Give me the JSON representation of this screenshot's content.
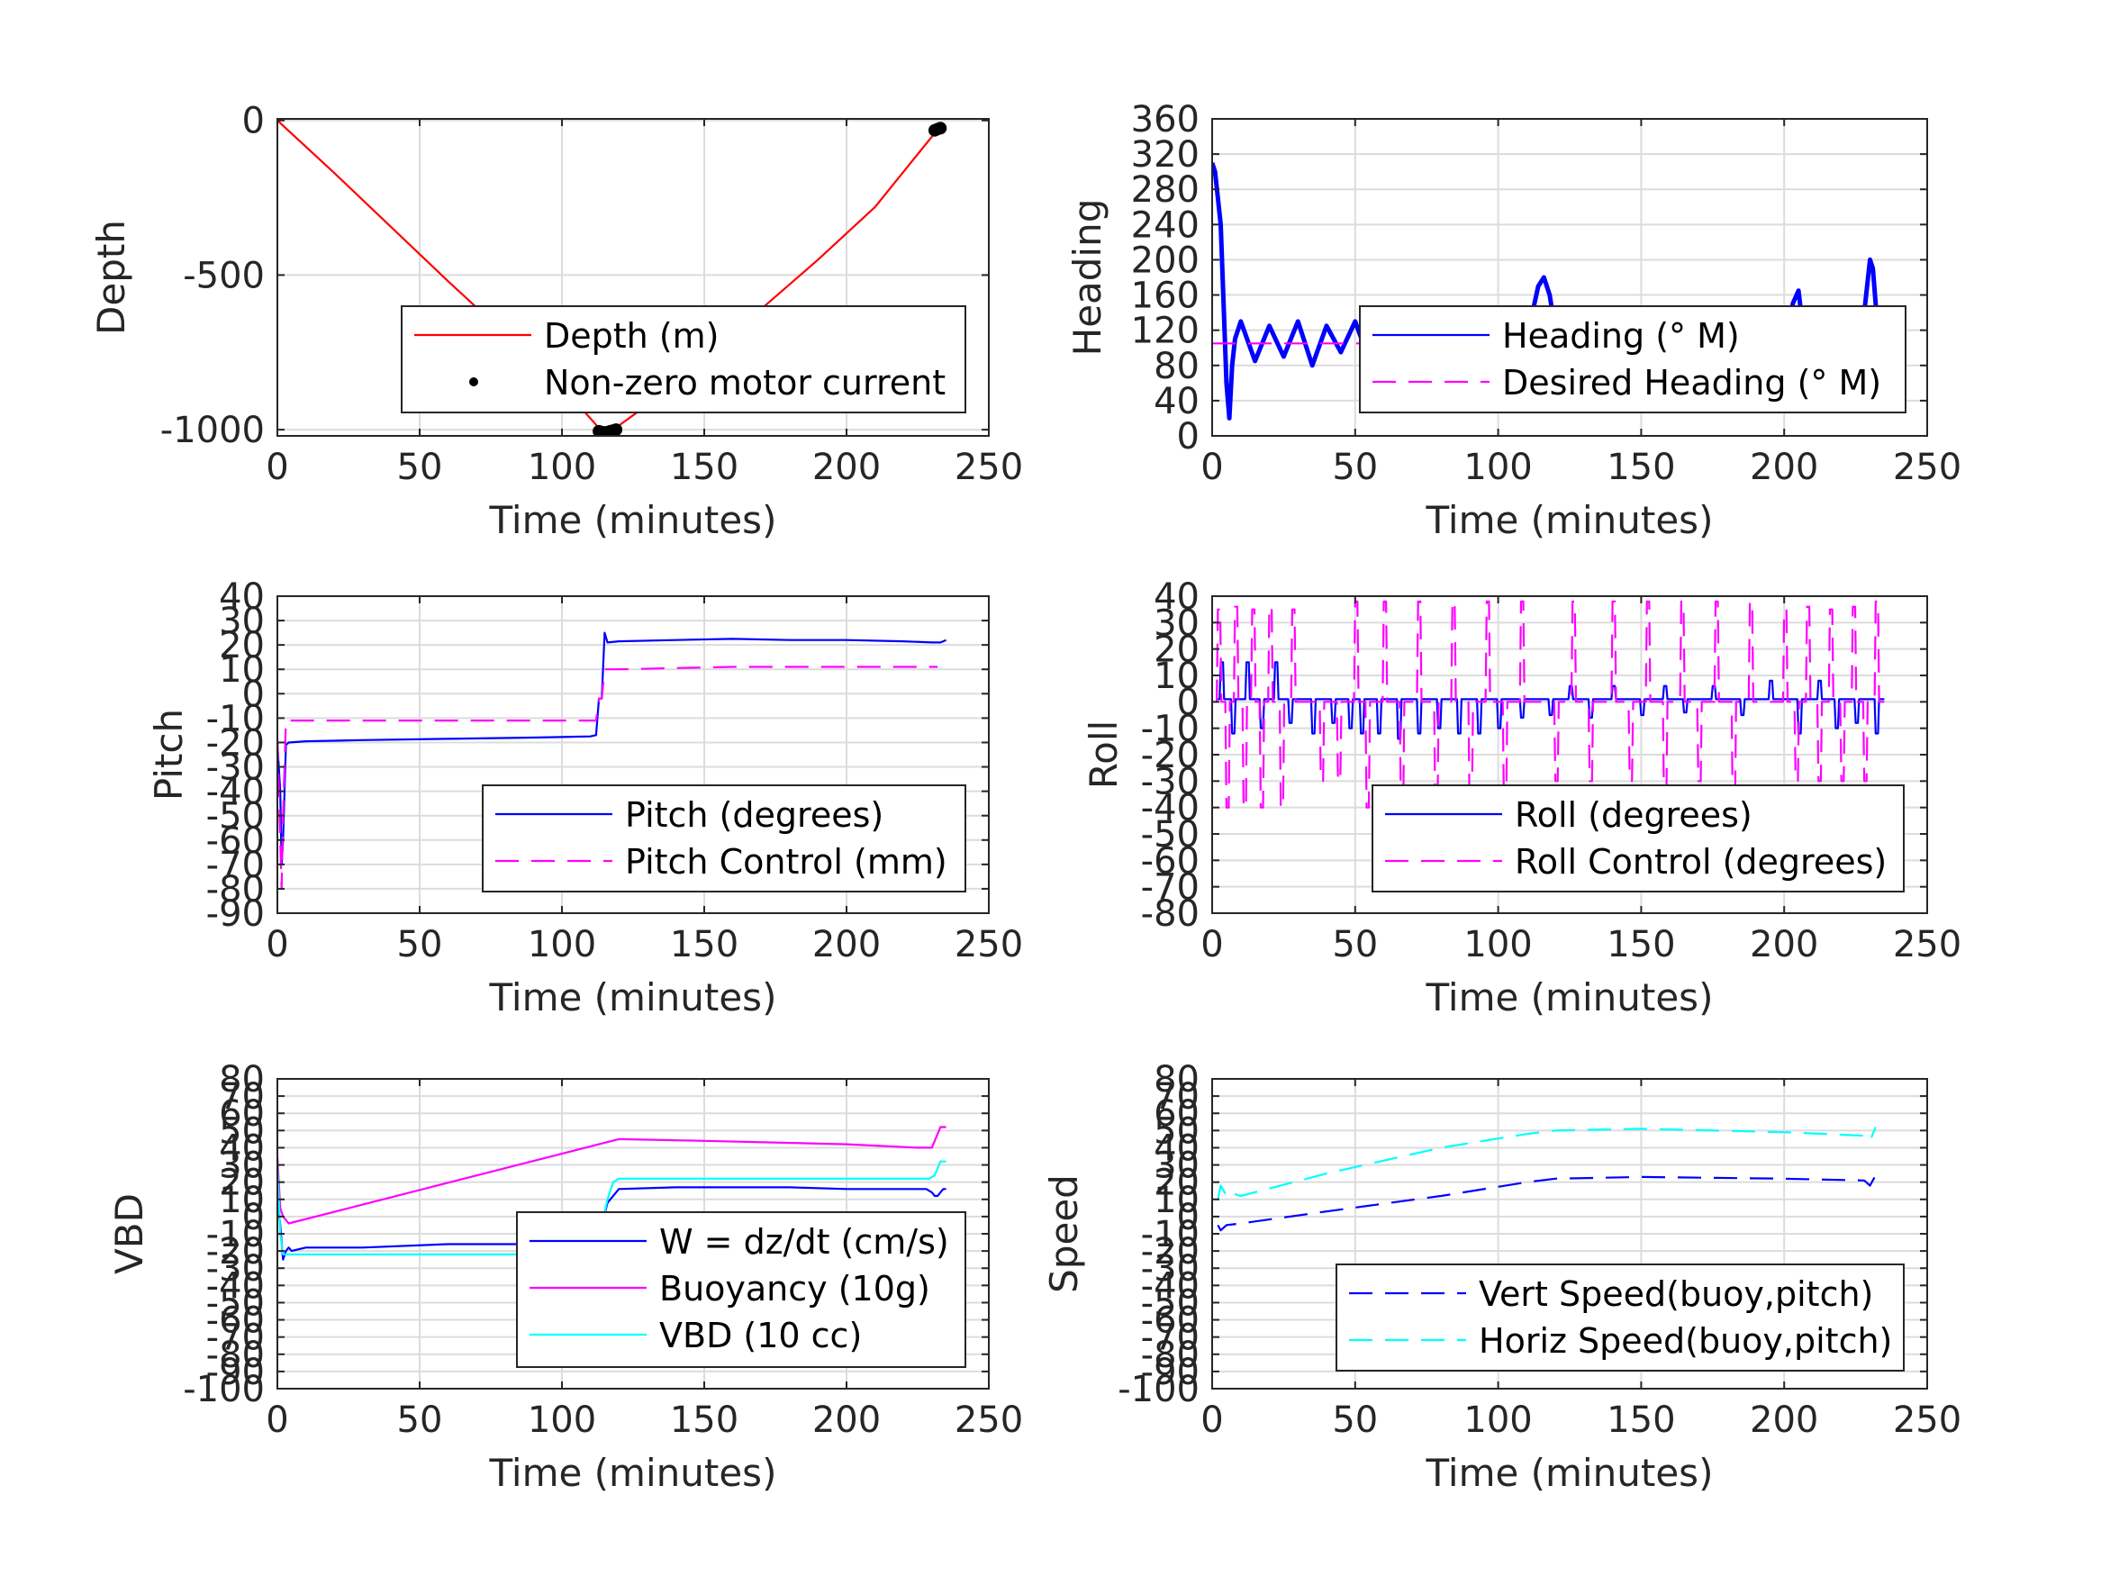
{
  "chart_data": [
    {
      "id": "depth",
      "type": "line",
      "ylabel": "Depth",
      "xlabel": "Time (minutes)",
      "xlim": [
        0,
        250
      ],
      "ylim": [
        -1020,
        5
      ],
      "xticks": [
        0,
        50,
        100,
        150,
        200,
        250
      ],
      "yticks": [
        0,
        -500,
        -1000
      ],
      "ytick_labels": [
        "0",
        "-500",
        "-1000"
      ],
      "grid": true,
      "legend_position": "lower-right",
      "series": [
        {
          "name": "Depth (m)",
          "color": "#ff0000",
          "style": "solid",
          "x": [
            0,
            20,
            40,
            60,
            80,
            100,
            114,
            118,
            130,
            150,
            170,
            190,
            210,
            232,
            234
          ],
          "y": [
            0,
            -170,
            -345,
            -520,
            -690,
            -860,
            -1005,
            -1000,
            -920,
            -760,
            -610,
            -450,
            -280,
            -30,
            -20
          ]
        },
        {
          "name": "Non-zero motor current",
          "color": "#000000",
          "style": "dots",
          "x": [
            113,
            114,
            115,
            116,
            117,
            118,
            119,
            231,
            232,
            233
          ],
          "y": [
            -1005,
            -1008,
            -1009,
            -1008,
            -1005,
            -1003,
            -1000,
            -32,
            -28,
            -25
          ]
        }
      ]
    },
    {
      "id": "heading",
      "type": "line",
      "ylabel": "Heading",
      "xlabel": "Time (minutes)",
      "xlim": [
        0,
        250
      ],
      "ylim": [
        0,
        360
      ],
      "xticks": [
        0,
        50,
        100,
        150,
        200,
        250
      ],
      "yticks": [
        0,
        40,
        80,
        120,
        160,
        200,
        240,
        280,
        320,
        360
      ],
      "ytick_labels": [
        "0",
        "40",
        "80",
        "120",
        "160",
        "200",
        "240",
        "280",
        "320",
        "360"
      ],
      "grid": true,
      "legend_position": "lower-right",
      "series": [
        {
          "name": "Heading (° M)",
          "color": "#0000ff",
          "style": "solid",
          "x": [
            0,
            1,
            2,
            3,
            4,
            5,
            6,
            7,
            8,
            10,
            15,
            20,
            25,
            30,
            35,
            40,
            45,
            50,
            55,
            60,
            65,
            70,
            75,
            80,
            85,
            90,
            95,
            100,
            105,
            110,
            112,
            114,
            116,
            118,
            120,
            125,
            130,
            135,
            140,
            145,
            150,
            155,
            160,
            165,
            170,
            175,
            180,
            185,
            190,
            195,
            200,
            203,
            205,
            207,
            210,
            215,
            220,
            225,
            228,
            230,
            231,
            232,
            233,
            234,
            235
          ],
          "y": [
            310,
            300,
            270,
            240,
            150,
            60,
            20,
            80,
            110,
            130,
            85,
            125,
            90,
            130,
            80,
            125,
            95,
            130,
            85,
            120,
            90,
            125,
            80,
            130,
            90,
            120,
            85,
            130,
            95,
            120,
            140,
            170,
            180,
            160,
            120,
            80,
            125,
            90,
            130,
            80,
            125,
            90,
            120,
            75,
            130,
            85,
            140,
            100,
            80,
            120,
            60,
            150,
            165,
            110,
            70,
            125,
            95,
            120,
            140,
            200,
            190,
            150,
            110,
            80,
            40
          ]
        },
        {
          "name": "Desired Heading (° M)",
          "color": "#ff00ff",
          "style": "dashed",
          "x": [
            0,
            235
          ],
          "y": [
            105,
            105
          ]
        }
      ]
    },
    {
      "id": "pitch",
      "type": "line",
      "ylabel": "Pitch",
      "xlabel": "Time (minutes)",
      "xlim": [
        0,
        250
      ],
      "ylim": [
        -90,
        40
      ],
      "xticks": [
        0,
        50,
        100,
        150,
        200,
        250
      ],
      "yticks": [
        40,
        30,
        20,
        10,
        0,
        -10,
        -20,
        -30,
        -40,
        -50,
        -60,
        -70,
        -80,
        -90
      ],
      "ytick_labels": [
        "40",
        "30",
        "20",
        "10",
        "0",
        "-10",
        "-20",
        "-30",
        "-40",
        "-50",
        "-60",
        "-70",
        "-80",
        "-90"
      ],
      "grid": true,
      "legend_position": "lower-right",
      "series": [
        {
          "name": "Pitch (degrees)",
          "color": "#0000ff",
          "style": "solid",
          "x": [
            0,
            1,
            1.5,
            2,
            3,
            4,
            10,
            30,
            60,
            90,
            110,
            112,
            113,
            114,
            115,
            116,
            120,
            140,
            160,
            180,
            200,
            220,
            230,
            233,
            234,
            235
          ],
          "y": [
            -20,
            -40,
            -70,
            -60,
            -21,
            -20,
            -19.5,
            -19,
            -18.5,
            -18,
            -17.5,
            -17,
            -2,
            -2,
            25,
            21,
            21.5,
            22,
            22.5,
            22,
            22,
            21.5,
            21,
            21,
            21.5,
            22
          ]
        },
        {
          "name": "Pitch Control (mm)",
          "color": "#ff00ff",
          "style": "dashed",
          "x": [
            0,
            1,
            1.5,
            2,
            3,
            5,
            50,
            100,
            112,
            113,
            114,
            115,
            120,
            160,
            200,
            232
          ],
          "y": [
            -18,
            -60,
            -80,
            -50,
            -11,
            -11,
            -11,
            -11,
            -11,
            -2,
            -2,
            10,
            10,
            11,
            11,
            11
          ]
        }
      ]
    },
    {
      "id": "roll",
      "type": "line",
      "ylabel": "Roll",
      "xlabel": "Time (minutes)",
      "xlim": [
        0,
        250
      ],
      "ylim": [
        -80,
        40
      ],
      "xticks": [
        0,
        50,
        100,
        150,
        200,
        250
      ],
      "yticks": [
        40,
        30,
        20,
        10,
        0,
        -10,
        -20,
        -30,
        -40,
        -50,
        -60,
        -70,
        -80
      ],
      "ytick_labels": [
        "40",
        "30",
        "20",
        "10",
        "0",
        "-10",
        "-20",
        "-30",
        "-40",
        "-50",
        "-60",
        "-70",
        "-80"
      ],
      "grid": true,
      "legend_position": "lower-right",
      "series": [
        {
          "name": "Roll (degrees)",
          "color": "#0000ff",
          "style": "solid",
          "spikes_x": [
            3,
            7,
            12,
            17,
            22,
            27,
            35,
            42,
            48,
            52,
            58,
            65,
            72,
            79,
            86,
            93,
            100,
            108,
            118,
            125,
            132,
            140,
            150,
            158,
            165,
            175,
            185,
            195,
            205,
            212,
            218,
            225,
            232
          ],
          "spikes_y": [
            15,
            -12,
            15,
            -10,
            15,
            -8,
            -12,
            -8,
            -10,
            -12,
            -12,
            -14,
            -12,
            -10,
            -12,
            -12,
            -10,
            -6,
            -5,
            6,
            -6,
            6,
            -5,
            6,
            -4,
            6,
            -5,
            8,
            -12,
            8,
            -10,
            -8,
            -12
          ],
          "base": 1
        },
        {
          "name": "Roll Control (degrees)",
          "color": "#ff00ff",
          "style": "dashed",
          "spikes_x": [
            2,
            5,
            8,
            11,
            14,
            17,
            20,
            24,
            28,
            38,
            44,
            50,
            54,
            60,
            66,
            72,
            78,
            84,
            90,
            96,
            102,
            108,
            120,
            126,
            132,
            140,
            146,
            152,
            158,
            164,
            170,
            176,
            182,
            188,
            200,
            204,
            208,
            212,
            216,
            220,
            224,
            228,
            232
          ],
          "spikes_y": [
            35,
            -40,
            36,
            -40,
            35,
            -40,
            36,
            -40,
            35,
            -30,
            -30,
            38,
            -40,
            38,
            -40,
            38,
            -40,
            38,
            -40,
            38,
            -40,
            38,
            -30,
            38,
            -30,
            38,
            -30,
            38,
            -40,
            38,
            -30,
            38,
            -40,
            38,
            35,
            -30,
            36,
            -30,
            35,
            -30,
            36,
            -30,
            38
          ],
          "base": 0
        }
      ]
    },
    {
      "id": "vbd",
      "type": "line",
      "ylabel": "VBD",
      "xlabel": "Time (minutes)",
      "xlim": [
        0,
        250
      ],
      "ylim": [
        -100,
        80
      ],
      "xticks": [
        0,
        50,
        100,
        150,
        200,
        250
      ],
      "yticks": [
        80,
        70,
        60,
        50,
        40,
        30,
        20,
        10,
        0,
        -10,
        -20,
        -30,
        -40,
        -50,
        -60,
        -70,
        -80,
        -90,
        -100
      ],
      "ytick_labels": [
        "80",
        "70",
        "60",
        "50",
        "40",
        "30",
        "20",
        "10",
        "0",
        "-10",
        "-20",
        "-30",
        "-40",
        "-50",
        "-60",
        "-70",
        "-80",
        "-90",
        "-100"
      ],
      "grid": true,
      "legend_position": "lower-right",
      "series": [
        {
          "name": "W = dz/dt (cm/s)",
          "color": "#0000ff",
          "style": "solid",
          "x": [
            0,
            1,
            2,
            3,
            4,
            5,
            10,
            30,
            60,
            90,
            108,
            112,
            114,
            116,
            120,
            140,
            160,
            180,
            200,
            220,
            228,
            230,
            231,
            232,
            233,
            234,
            235
          ],
          "y": [
            10,
            -5,
            -25,
            -20,
            -18,
            -20,
            -18,
            -18,
            -16,
            -16,
            -16,
            -14,
            -5,
            8,
            16,
            17,
            17,
            17,
            16,
            16,
            16,
            14,
            12,
            12,
            14,
            16,
            16
          ]
        },
        {
          "name": "Buoyancy (10g)",
          "color": "#ff00ff",
          "style": "solid",
          "x": [
            0,
            1,
            2,
            3,
            4,
            120,
            150,
            200,
            225,
            230,
            232,
            233,
            235
          ],
          "y": [
            35,
            5,
            0,
            -2,
            -4,
            45,
            44,
            42,
            40,
            40,
            48,
            52,
            52
          ]
        },
        {
          "name": "VBD (10 cc)",
          "color": "#00ffff",
          "style": "solid",
          "x": [
            0,
            1,
            2,
            3,
            4,
            110,
            112,
            114,
            116,
            118,
            120,
            150,
            200,
            229,
            231,
            233,
            235
          ],
          "y": [
            30,
            -10,
            -22,
            -22,
            -22,
            -22,
            -20,
            -5,
            10,
            20,
            22,
            22,
            22,
            22,
            24,
            32,
            32
          ]
        }
      ]
    },
    {
      "id": "speed",
      "type": "line",
      "ylabel": "Speed",
      "xlabel": "Time (minutes)",
      "xlim": [
        0,
        250
      ],
      "ylim": [
        -100,
        80
      ],
      "xticks": [
        0,
        50,
        100,
        150,
        200,
        250
      ],
      "yticks": [
        80,
        70,
        60,
        50,
        40,
        30,
        20,
        10,
        0,
        -10,
        -20,
        -30,
        -40,
        -50,
        -60,
        -70,
        -80,
        -90,
        -100
      ],
      "ytick_labels": [
        "80",
        "70",
        "60",
        "50",
        "40",
        "30",
        "20",
        "10",
        "0",
        "-10",
        "-20",
        "-30",
        "-40",
        "-50",
        "-60",
        "-70",
        "-80",
        "-90",
        "-100"
      ],
      "grid": true,
      "legend_position": "lower-right",
      "series": [
        {
          "name": "Vert Speed(buoy,pitch)",
          "color": "#0000ff",
          "style": "dashed",
          "x": [
            2,
            3,
            5,
            10,
            40,
            80,
            110,
            120,
            150,
            200,
            228,
            230,
            232
          ],
          "y": [
            -5,
            -8,
            -5,
            -4,
            3,
            12,
            20,
            22,
            23,
            22,
            21,
            18,
            24
          ]
        },
        {
          "name": "Horiz Speed(buoy,pitch)",
          "color": "#00ffff",
          "style": "dashed",
          "x": [
            2,
            3,
            4,
            5,
            6,
            10,
            40,
            80,
            110,
            120,
            150,
            200,
            228,
            230,
            232
          ],
          "y": [
            10,
            18,
            15,
            12,
            14,
            12,
            25,
            40,
            48,
            50,
            51,
            49,
            47,
            44,
            52
          ]
        }
      ]
    }
  ]
}
